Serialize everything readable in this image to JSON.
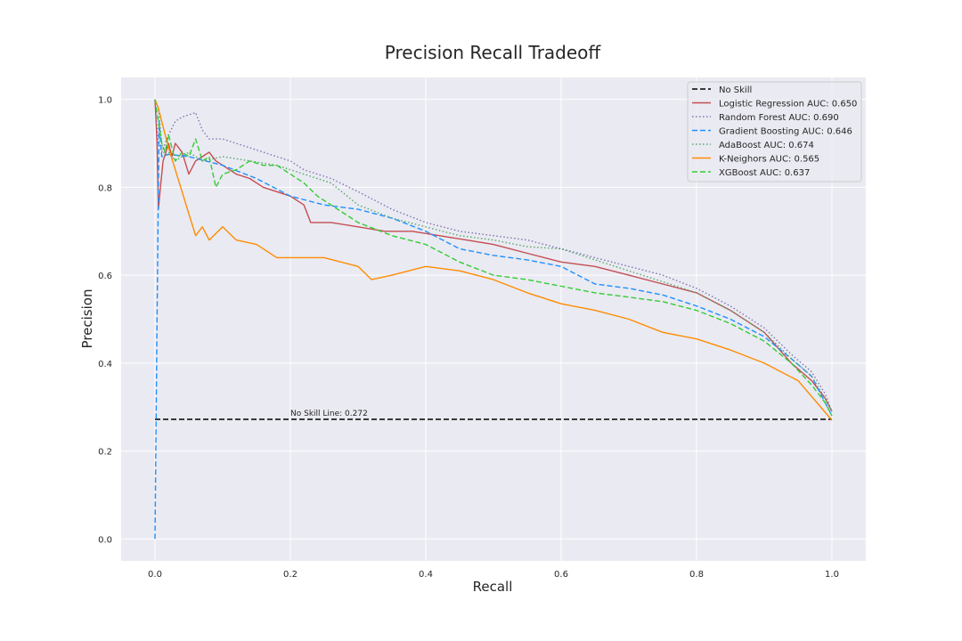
{
  "chart_data": {
    "type": "line",
    "title": "Precision Recall Tradeoff",
    "xlabel": "Recall",
    "ylabel": "Precision",
    "xlim": [
      -0.05,
      1.05
    ],
    "ylim": [
      -0.05,
      1.05
    ],
    "xticks": [
      0.0,
      0.2,
      0.4,
      0.6,
      0.8,
      1.0
    ],
    "xtick_labels": [
      "0.0",
      "0.2",
      "0.4",
      "0.6",
      "0.8",
      "1.0"
    ],
    "yticks": [
      0.0,
      0.2,
      0.4,
      0.6,
      0.8,
      1.0
    ],
    "ytick_labels": [
      "0.0",
      "0.2",
      "0.4",
      "0.6",
      "0.8",
      "1.0"
    ],
    "grid": true,
    "legend_position": "top-right",
    "background": "#eaeaf2",
    "annotation": {
      "text": "No Skill Line: 0.272",
      "x": 0.2,
      "y": 0.272
    },
    "series": [
      {
        "name": "No Skill",
        "color": "#000000",
        "dash": "dashed",
        "x": [
          0.0,
          1.0
        ],
        "y": [
          0.272,
          0.272
        ]
      },
      {
        "name": "Logistic Regression AUC: 0.650",
        "color": "#c44e52",
        "dash": "solid",
        "x": [
          0.0,
          0.003,
          0.005,
          0.008,
          0.012,
          0.016,
          0.02,
          0.025,
          0.03,
          0.04,
          0.05,
          0.06,
          0.07,
          0.08,
          0.09,
          0.1,
          0.12,
          0.14,
          0.16,
          0.18,
          0.2,
          0.22,
          0.23,
          0.26,
          0.3,
          0.34,
          0.38,
          0.42,
          0.46,
          0.5,
          0.55,
          0.6,
          0.65,
          0.7,
          0.75,
          0.8,
          0.85,
          0.9,
          0.94,
          0.97,
          0.99,
          1.0
        ],
        "y": [
          1.0,
          0.9,
          0.75,
          0.8,
          0.86,
          0.88,
          0.9,
          0.87,
          0.9,
          0.88,
          0.83,
          0.86,
          0.87,
          0.88,
          0.86,
          0.85,
          0.83,
          0.82,
          0.8,
          0.79,
          0.78,
          0.76,
          0.72,
          0.72,
          0.71,
          0.7,
          0.7,
          0.69,
          0.68,
          0.67,
          0.65,
          0.63,
          0.62,
          0.6,
          0.58,
          0.56,
          0.52,
          0.47,
          0.4,
          0.36,
          0.32,
          0.29
        ]
      },
      {
        "name": "Random Forest AUC: 0.690",
        "color": "#8172b2",
        "dash": "dotted",
        "x": [
          0.0,
          0.005,
          0.01,
          0.02,
          0.03,
          0.04,
          0.06,
          0.07,
          0.08,
          0.1,
          0.14,
          0.18,
          0.2,
          0.22,
          0.26,
          0.3,
          0.35,
          0.4,
          0.45,
          0.5,
          0.55,
          0.6,
          0.65,
          0.7,
          0.75,
          0.8,
          0.85,
          0.9,
          0.94,
          0.97,
          0.99,
          1.0
        ],
        "y": [
          1.0,
          0.9,
          0.88,
          0.92,
          0.95,
          0.96,
          0.97,
          0.93,
          0.91,
          0.91,
          0.89,
          0.87,
          0.86,
          0.84,
          0.82,
          0.79,
          0.75,
          0.72,
          0.7,
          0.69,
          0.68,
          0.66,
          0.64,
          0.62,
          0.6,
          0.57,
          0.53,
          0.48,
          0.42,
          0.38,
          0.33,
          0.29
        ]
      },
      {
        "name": "Gradient Boosting AUC: 0.646",
        "color": "#1e90ff",
        "dash": "dashed",
        "x": [
          0.0,
          0.003,
          0.006,
          0.01,
          0.02,
          0.05,
          0.1,
          0.15,
          0.2,
          0.25,
          0.3,
          0.35,
          0.4,
          0.45,
          0.5,
          0.55,
          0.6,
          0.65,
          0.7,
          0.75,
          0.8,
          0.85,
          0.9,
          0.94,
          0.97,
          0.99,
          1.0
        ],
        "y": [
          0.0,
          0.5,
          0.95,
          0.87,
          0.875,
          0.87,
          0.85,
          0.82,
          0.78,
          0.76,
          0.75,
          0.73,
          0.7,
          0.66,
          0.645,
          0.635,
          0.62,
          0.58,
          0.57,
          0.555,
          0.53,
          0.5,
          0.46,
          0.41,
          0.37,
          0.31,
          0.28
        ]
      },
      {
        "name": "AdaBoost AUC: 0.674",
        "color": "#55a868",
        "dash": "dotted",
        "x": [
          0.0,
          0.005,
          0.01,
          0.015,
          0.02,
          0.03,
          0.05,
          0.07,
          0.1,
          0.14,
          0.18,
          0.22,
          0.26,
          0.3,
          0.35,
          0.4,
          0.45,
          0.5,
          0.55,
          0.6,
          0.65,
          0.7,
          0.75,
          0.8,
          0.85,
          0.9,
          0.94,
          0.97,
          0.99,
          1.0
        ],
        "y": [
          1.0,
          0.98,
          0.9,
          0.87,
          0.88,
          0.86,
          0.88,
          0.86,
          0.87,
          0.86,
          0.85,
          0.83,
          0.81,
          0.76,
          0.73,
          0.71,
          0.69,
          0.68,
          0.665,
          0.66,
          0.635,
          0.61,
          0.585,
          0.56,
          0.52,
          0.47,
          0.41,
          0.37,
          0.32,
          0.29
        ]
      },
      {
        "name": "K-Neighors AUC: 0.565",
        "color": "#ff8c00",
        "dash": "solid",
        "x": [
          0.0,
          0.005,
          0.01,
          0.02,
          0.03,
          0.04,
          0.05,
          0.06,
          0.07,
          0.08,
          0.1,
          0.12,
          0.15,
          0.18,
          0.2,
          0.25,
          0.3,
          0.32,
          0.35,
          0.4,
          0.45,
          0.5,
          0.55,
          0.6,
          0.65,
          0.7,
          0.75,
          0.8,
          0.85,
          0.9,
          0.95,
          1.0
        ],
        "y": [
          1.0,
          0.98,
          0.95,
          0.89,
          0.84,
          0.79,
          0.74,
          0.69,
          0.71,
          0.68,
          0.71,
          0.68,
          0.67,
          0.64,
          0.64,
          0.64,
          0.62,
          0.59,
          0.6,
          0.62,
          0.61,
          0.59,
          0.56,
          0.535,
          0.52,
          0.5,
          0.47,
          0.455,
          0.43,
          0.4,
          0.36,
          0.27
        ]
      },
      {
        "name": "XGBoost AUC: 0.637",
        "color": "#32cd32",
        "dash": "dashed",
        "x": [
          0.0,
          0.005,
          0.01,
          0.015,
          0.02,
          0.03,
          0.04,
          0.05,
          0.06,
          0.07,
          0.08,
          0.09,
          0.1,
          0.12,
          0.14,
          0.16,
          0.18,
          0.2,
          0.22,
          0.24,
          0.26,
          0.3,
          0.35,
          0.4,
          0.45,
          0.5,
          0.55,
          0.6,
          0.65,
          0.7,
          0.75,
          0.8,
          0.85,
          0.9,
          0.94,
          0.97,
          0.99,
          1.0
        ],
        "y": [
          1.0,
          0.95,
          0.9,
          0.88,
          0.92,
          0.86,
          0.88,
          0.87,
          0.91,
          0.86,
          0.87,
          0.8,
          0.83,
          0.84,
          0.86,
          0.85,
          0.85,
          0.83,
          0.81,
          0.78,
          0.76,
          0.72,
          0.69,
          0.67,
          0.63,
          0.6,
          0.59,
          0.575,
          0.56,
          0.55,
          0.54,
          0.52,
          0.49,
          0.45,
          0.4,
          0.35,
          0.31,
          0.28
        ]
      }
    ]
  }
}
